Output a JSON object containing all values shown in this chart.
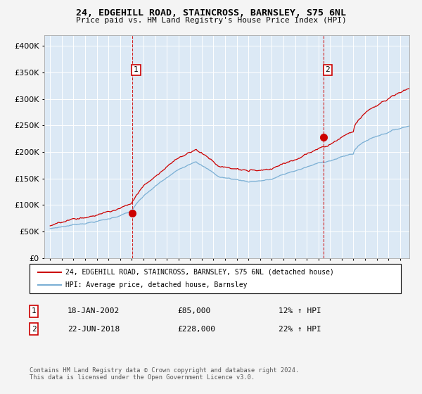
{
  "title": "24, EDGEHILL ROAD, STAINCROSS, BARNSLEY, S75 6NL",
  "subtitle": "Price paid vs. HM Land Registry's House Price Index (HPI)",
  "legend_line1": "24, EDGEHILL ROAD, STAINCROSS, BARNSLEY, S75 6NL (detached house)",
  "legend_line2": "HPI: Average price, detached house, Barnsley",
  "annotation1_label": "1",
  "annotation1_date": "18-JAN-2002",
  "annotation1_price": "£85,000",
  "annotation1_hpi": "12% ↑ HPI",
  "annotation2_label": "2",
  "annotation2_date": "22-JUN-2018",
  "annotation2_price": "£228,000",
  "annotation2_hpi": "22% ↑ HPI",
  "footer": "Contains HM Land Registry data © Crown copyright and database right 2024.\nThis data is licensed under the Open Government Licence v3.0.",
  "fig_bg_color": "#f4f4f4",
  "plot_bg_color": "#dce9f5",
  "grid_color": "#ffffff",
  "red_line_color": "#cc0000",
  "blue_line_color": "#7aafd4",
  "sale1_x": 2002.05,
  "sale1_y": 85000,
  "sale2_x": 2018.47,
  "sale2_y": 228000,
  "ylim": [
    0,
    420000
  ],
  "xlim_start": 1994.5,
  "xlim_end": 2025.8,
  "yticks": [
    0,
    50000,
    100000,
    150000,
    200000,
    250000,
    300000,
    350000,
    400000
  ],
  "xticks": [
    1995,
    1996,
    1997,
    1998,
    1999,
    2000,
    2001,
    2002,
    2003,
    2004,
    2005,
    2006,
    2007,
    2008,
    2009,
    2010,
    2011,
    2012,
    2013,
    2014,
    2015,
    2016,
    2017,
    2018,
    2019,
    2020,
    2021,
    2022,
    2023,
    2024,
    2025
  ]
}
